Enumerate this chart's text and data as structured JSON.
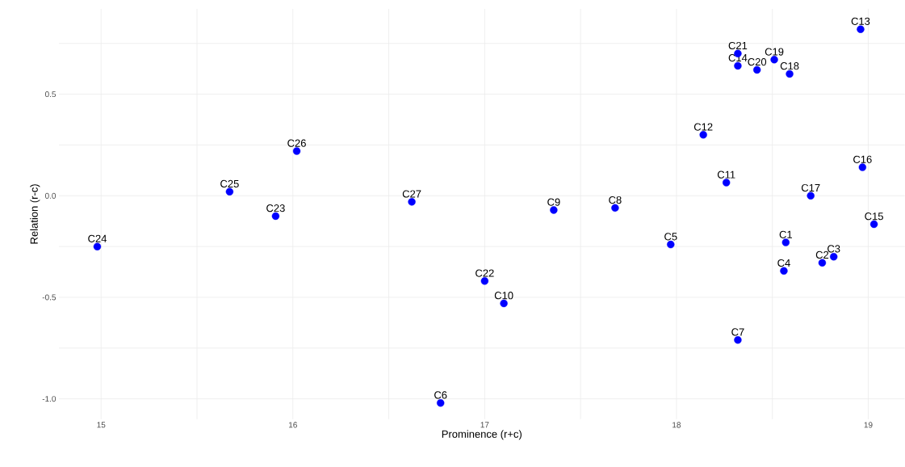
{
  "chart_data": {
    "type": "scatter",
    "xlabel": "Prominence (r+c)",
    "ylabel": "Relation (r-c)",
    "x": [
      18.57,
      18.76,
      18.82,
      18.56,
      17.97,
      16.77,
      18.32,
      17.68,
      17.36,
      17.1,
      18.26,
      18.14,
      18.96,
      18.32,
      19.03,
      18.97,
      18.7,
      18.59,
      18.51,
      18.42,
      18.32,
      17.0,
      15.91,
      14.98,
      15.67,
      16.02,
      16.62
    ],
    "values": [
      -0.23,
      -0.33,
      -0.3,
      -0.37,
      -0.24,
      -1.02,
      -0.71,
      -0.06,
      -0.07,
      -0.53,
      0.065,
      0.3,
      0.82,
      0.64,
      -0.14,
      0.14,
      0.0,
      0.6,
      0.67,
      0.62,
      0.7,
      -0.42,
      -0.1,
      -0.25,
      0.02,
      0.22,
      -0.03
    ],
    "color": "#0000ff",
    "marker": "circle",
    "grid": true,
    "xlim": [
      14.78,
      19.19
    ],
    "ylim": [
      -1.1,
      0.92
    ],
    "xticks": [
      15,
      {
        "value": 15.5,
        "label": null
      },
      16,
      {
        "value": 16.5,
        "label": null
      },
      17,
      {
        "value": 17.5,
        "label": null
      },
      18,
      {
        "value": 18.5,
        "label": null
      },
      19
    ],
    "yticks": [
      {
        "value": -1.0,
        "label": "-1.0"
      },
      {
        "value": -0.75,
        "label": null
      },
      -0.5,
      {
        "value": -0.25,
        "label": null
      },
      {
        "value": 0.0,
        "label": "0.0"
      },
      {
        "value": 0.25,
        "label": null
      },
      0.5,
      {
        "value": 0.75,
        "label": null
      }
    ],
    "annotations": [
      {
        "text": "C1",
        "x": 18.57,
        "y": -0.23
      },
      {
        "text": "C2",
        "x": 18.76,
        "y": -0.33
      },
      {
        "text": "C3",
        "x": 18.82,
        "y": -0.3
      },
      {
        "text": "C4",
        "x": 18.56,
        "y": -0.37
      },
      {
        "text": "C5",
        "x": 17.97,
        "y": -0.24
      },
      {
        "text": "C6",
        "x": 16.77,
        "y": -1.02
      },
      {
        "text": "C7",
        "x": 18.32,
        "y": -0.71
      },
      {
        "text": "C8",
        "x": 17.68,
        "y": -0.06
      },
      {
        "text": "C9",
        "x": 17.36,
        "y": -0.07
      },
      {
        "text": "C10",
        "x": 17.1,
        "y": -0.53
      },
      {
        "text": "C11",
        "x": 18.26,
        "y": 0.065
      },
      {
        "text": "C12",
        "x": 18.14,
        "y": 0.3
      },
      {
        "text": "C13",
        "x": 18.96,
        "y": 0.82
      },
      {
        "text": "C14",
        "x": 18.32,
        "y": 0.64
      },
      {
        "text": "C15",
        "x": 19.03,
        "y": -0.14
      },
      {
        "text": "C16",
        "x": 18.97,
        "y": 0.14
      },
      {
        "text": "C17",
        "x": 18.7,
        "y": 0.0
      },
      {
        "text": "C18",
        "x": 18.59,
        "y": 0.6
      },
      {
        "text": "C19",
        "x": 18.51,
        "y": 0.67
      },
      {
        "text": "C20",
        "x": 18.42,
        "y": 0.62
      },
      {
        "text": "C21",
        "x": 18.32,
        "y": 0.7
      },
      {
        "text": "C22",
        "x": 17.0,
        "y": -0.42
      },
      {
        "text": "C23",
        "x": 15.91,
        "y": -0.1
      },
      {
        "text": "C24",
        "x": 14.98,
        "y": -0.25
      },
      {
        "text": "C25",
        "x": 15.67,
        "y": 0.02
      },
      {
        "text": "C26",
        "x": 16.02,
        "y": 0.22
      },
      {
        "text": "C27",
        "x": 16.62,
        "y": -0.03
      }
    ]
  }
}
